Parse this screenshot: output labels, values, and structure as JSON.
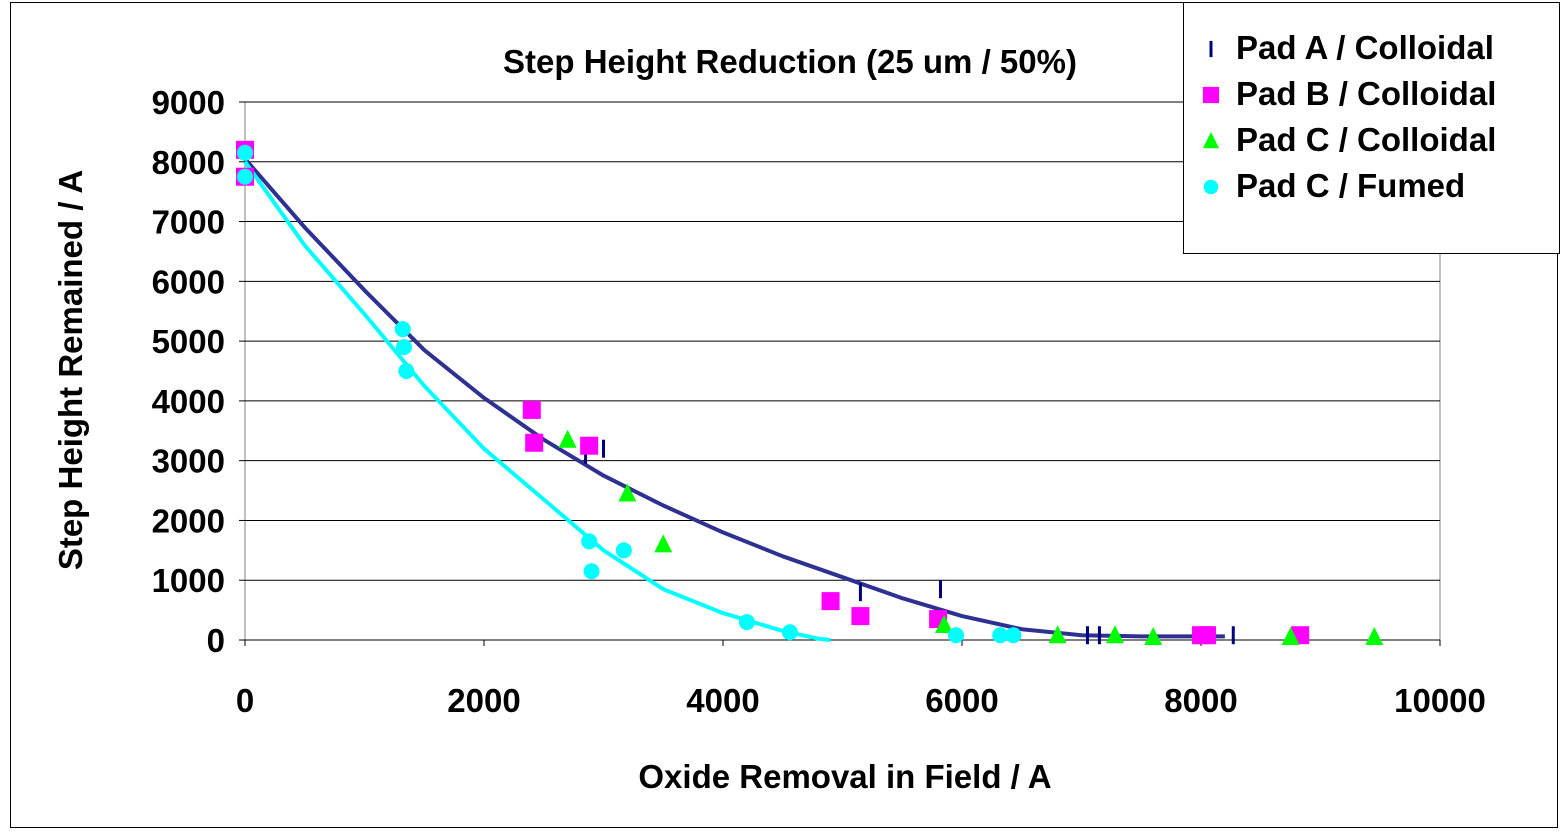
{
  "chart_data": {
    "type": "scatter",
    "title": "Step Height Reduction (25 um / 50%)",
    "xlabel": "Oxide Removal in Field / A",
    "ylabel": "Step Height Remained / A",
    "xlim": [
      0,
      10000
    ],
    "ylim": [
      0,
      9000
    ],
    "x_ticks": [
      "0",
      "2000",
      "4000",
      "6000",
      "8000",
      "10000"
    ],
    "y_ticks": [
      "0",
      "1000",
      "2000",
      "3000",
      "4000",
      "5000",
      "6000",
      "7000",
      "8000",
      "9000"
    ],
    "grid": "horizontal",
    "legend_position": "top-right",
    "series": [
      {
        "name": "Pad A / Colloidal",
        "marker": "dash",
        "color": "#000080",
        "points": [
          [
            2850,
            3100
          ],
          [
            3000,
            3200
          ],
          [
            5150,
            800
          ],
          [
            5820,
            850
          ],
          [
            7050,
            80
          ],
          [
            7150,
            80
          ],
          [
            8270,
            80
          ]
        ]
      },
      {
        "name": "Pad B / Colloidal",
        "marker": "square",
        "color": "#FF00FF",
        "points": [
          [
            0,
            8200
          ],
          [
            0,
            7750
          ],
          [
            2400,
            3850
          ],
          [
            2420,
            3300
          ],
          [
            2880,
            3250
          ],
          [
            4900,
            650
          ],
          [
            5150,
            400
          ],
          [
            5800,
            350
          ],
          [
            8000,
            80
          ],
          [
            8050,
            80
          ],
          [
            8830,
            80
          ]
        ]
      },
      {
        "name": "Pad C / Colloidal",
        "marker": "triangle",
        "color": "#00FF00",
        "points": [
          [
            2700,
            3350
          ],
          [
            3200,
            2450
          ],
          [
            3500,
            1600
          ],
          [
            5850,
            250
          ],
          [
            6800,
            80
          ],
          [
            7280,
            80
          ],
          [
            7600,
            50
          ],
          [
            8750,
            50
          ],
          [
            9450,
            50
          ]
        ]
      },
      {
        "name": "Pad C / Fumed",
        "marker": "circle",
        "color": "#00FFFF",
        "points": [
          [
            0,
            8150
          ],
          [
            0,
            7750
          ],
          [
            1320,
            5200
          ],
          [
            1330,
            4900
          ],
          [
            1350,
            4500
          ],
          [
            2880,
            1650
          ],
          [
            2900,
            1150
          ],
          [
            3170,
            1500
          ],
          [
            4200,
            300
          ],
          [
            4560,
            130
          ],
          [
            5950,
            80
          ],
          [
            6320,
            80
          ],
          [
            6430,
            80
          ]
        ]
      }
    ],
    "trendlines": [
      {
        "series": "Pad A / Colloidal",
        "color": "#2E3192",
        "points": [
          [
            0,
            8050
          ],
          [
            500,
            6900
          ],
          [
            1000,
            5850
          ],
          [
            1500,
            4850
          ],
          [
            2000,
            4050
          ],
          [
            2500,
            3350
          ],
          [
            3000,
            2750
          ],
          [
            3500,
            2250
          ],
          [
            4000,
            1800
          ],
          [
            4500,
            1400
          ],
          [
            5000,
            1050
          ],
          [
            5500,
            700
          ],
          [
            6000,
            400
          ],
          [
            6500,
            180
          ],
          [
            7000,
            80
          ],
          [
            7500,
            60
          ],
          [
            8000,
            60
          ],
          [
            8200,
            60
          ]
        ]
      },
      {
        "series": "Pad C / Fumed",
        "color": "#00FFFF",
        "points": [
          [
            0,
            8000
          ],
          [
            500,
            6600
          ],
          [
            1000,
            5450
          ],
          [
            1500,
            4250
          ],
          [
            2000,
            3200
          ],
          [
            2500,
            2350
          ],
          [
            3000,
            1500
          ],
          [
            3500,
            850
          ],
          [
            4000,
            450
          ],
          [
            4500,
            150
          ],
          [
            4800,
            20
          ],
          [
            4900,
            0
          ]
        ]
      }
    ]
  }
}
